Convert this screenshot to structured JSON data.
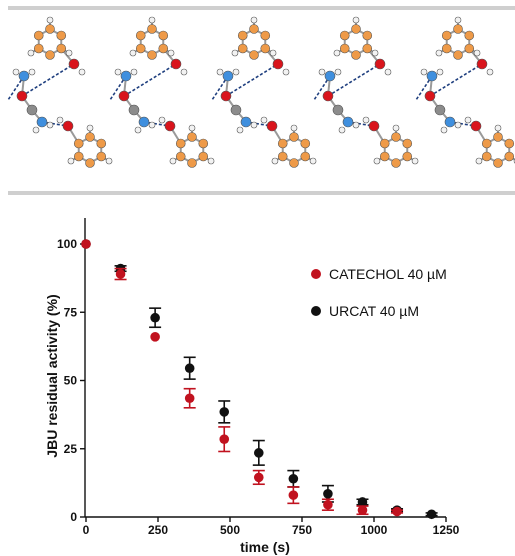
{
  "figure": {
    "structure_image": {
      "description_icon": "molecular-crystal-structure",
      "colors": {
        "carbon": "#ee9a48",
        "oxygen": "#d9141c",
        "nitrogen": "#3f8fde",
        "hydrogen": "#f2f2f2",
        "urea_carbon": "#8c8c8c",
        "hbond": "#1f3f7f",
        "frame": "#cfcfcf"
      }
    }
  },
  "chart_data": {
    "type": "scatter",
    "xlabel": "time (s)",
    "ylabel": "JBU residual activity (%)",
    "xlim": [
      0,
      1250
    ],
    "ylim": [
      0,
      100
    ],
    "x_ticks": [
      0,
      250,
      500,
      750,
      1000,
      1250
    ],
    "y_ticks": [
      0,
      25,
      50,
      75,
      100
    ],
    "legend_position": "right",
    "grid": false,
    "series": [
      {
        "name": "CATECHOL 40 µM",
        "color": "#c1121f",
        "x": [
          0,
          120,
          240,
          360,
          480,
          600,
          720,
          840,
          960,
          1080
        ],
        "y": [
          100,
          89,
          66,
          43.5,
          28.5,
          14.5,
          8,
          4.5,
          2.5,
          2
        ],
        "err": [
          0,
          2,
          0,
          3.5,
          4.5,
          2.5,
          3,
          2,
          1.5,
          0.5
        ]
      },
      {
        "name": "URCAT 40 µM",
        "color": "#111111",
        "x": [
          0,
          120,
          240,
          360,
          480,
          600,
          720,
          840,
          960,
          1080,
          1200
        ],
        "y": [
          100,
          91,
          73,
          54.5,
          38.5,
          23.5,
          14,
          8.5,
          5.5,
          2.5,
          1
        ],
        "err": [
          0,
          1,
          3.5,
          4,
          4,
          4.5,
          3,
          3,
          1,
          0.5,
          0.5
        ]
      }
    ]
  }
}
